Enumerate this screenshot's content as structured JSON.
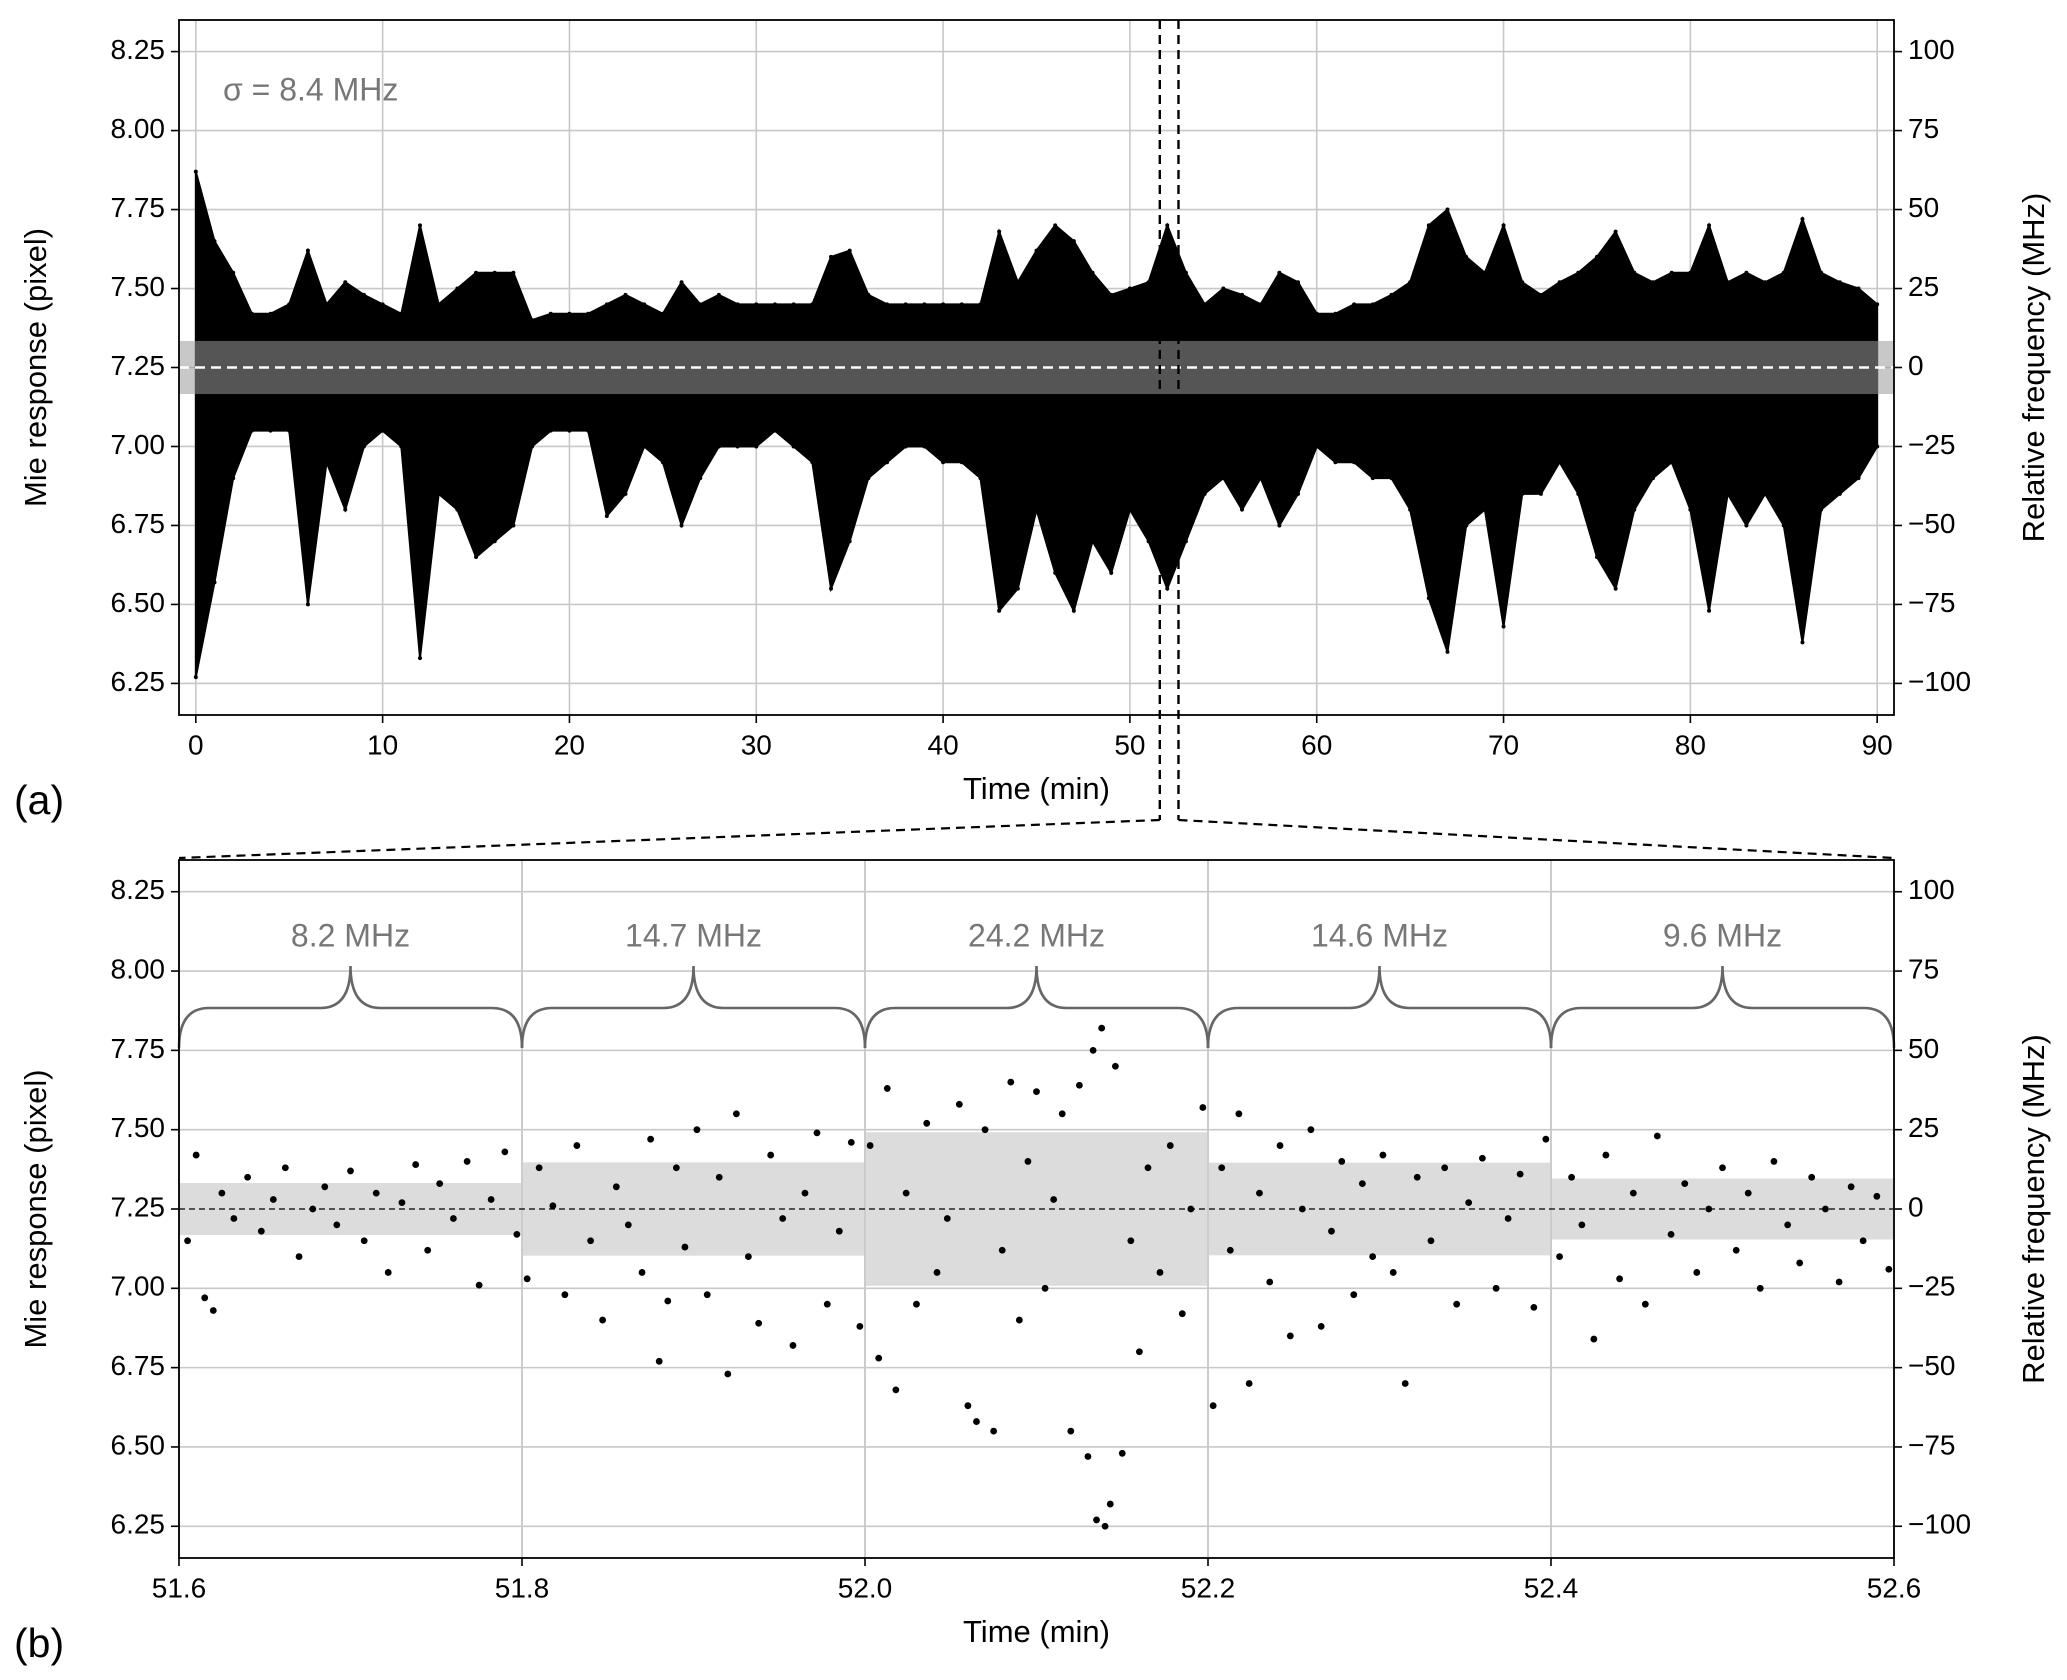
{
  "chart_data": [
    {
      "type": "scatter",
      "panel_label": "(a)",
      "x_label": "Time (min)",
      "y_label": "Mie response (pixel)",
      "y2_label": "Relative frequency (MHz)",
      "annotation": {
        "value": 8.4,
        "label": "σ = 8.4 MHz"
      },
      "reference_line": 7.25,
      "fill_to_reference": true,
      "grid": true,
      "xlim": [
        -0.9,
        90.9
      ],
      "xticks": [
        0,
        10,
        20,
        30,
        40,
        50,
        60,
        70,
        80,
        90
      ],
      "ylim": [
        6.15,
        8.35
      ],
      "yticks": [
        6.25,
        {
          "value": 6.5,
          "label": "6.50"
        },
        6.75,
        {
          "value": 7,
          "label": "7.00"
        },
        7.25,
        {
          "value": 7.5,
          "label": "7.50"
        },
        7.75,
        {
          "value": 8,
          "label": "8.00"
        },
        8.25
      ],
      "y2lim": [
        -110,
        110
      ],
      "y2ticks": [
        {
          "value": -100,
          "label": "−100"
        },
        {
          "value": -75,
          "label": "−75"
        },
        {
          "value": -50,
          "label": "−50"
        },
        {
          "value": -25,
          "label": "−25"
        },
        0,
        25,
        50,
        75,
        100
      ],
      "x": [
        0,
        1,
        2,
        3,
        4,
        5,
        6,
        7,
        8,
        9,
        10,
        11,
        12,
        13,
        14,
        15,
        16,
        17,
        18,
        19,
        20,
        21,
        22,
        23,
        24,
        25,
        26,
        27,
        28,
        29,
        30,
        31,
        32,
        33,
        34,
        35,
        36,
        37,
        38,
        39,
        40,
        41,
        42,
        43,
        44,
        45,
        46,
        47,
        48,
        49,
        50,
        51,
        52,
        53,
        54,
        55,
        56,
        57,
        58,
        59,
        60,
        61,
        62,
        63,
        64,
        65,
        66,
        67,
        68,
        69,
        70,
        71,
        72,
        73,
        74,
        75,
        76,
        77,
        78,
        79,
        80,
        81,
        82,
        83,
        84,
        85,
        86,
        87,
        88,
        89,
        90
      ],
      "series": [
        {
          "color": "#000000",
          "values": [
            7.87,
            7.65,
            7.55,
            7.42,
            7.42,
            7.45,
            7.62,
            7.45,
            7.52,
            7.48,
            7.45,
            7.42,
            7.7,
            7.45,
            7.5,
            7.55,
            7.55,
            7.55,
            7.4,
            7.42,
            7.42,
            7.42,
            7.45,
            7.48,
            7.45,
            7.42,
            7.52,
            7.45,
            7.48,
            7.45,
            7.45,
            7.45,
            7.45,
            7.45,
            7.6,
            7.62,
            7.48,
            7.45,
            7.45,
            7.45,
            7.45,
            7.45,
            7.45,
            7.68,
            7.52,
            7.62,
            7.7,
            7.65,
            7.55,
            7.48,
            7.5,
            7.52,
            7.7,
            7.55,
            7.45,
            7.5,
            7.48,
            7.45,
            7.55,
            7.52,
            7.42,
            7.42,
            7.45,
            7.45,
            7.48,
            7.52,
            7.7,
            7.75,
            7.6,
            7.55,
            7.7,
            7.52,
            7.48,
            7.52,
            7.55,
            7.6,
            7.68,
            7.55,
            7.52,
            7.55,
            7.55,
            7.7,
            7.52,
            7.55,
            7.52,
            7.55,
            7.72,
            7.55,
            7.52,
            7.5,
            7.45
          ]
        },
        {
          "color": "#000000",
          "values": [
            6.27,
            6.57,
            6.9,
            7.05,
            7.05,
            7.05,
            6.5,
            6.95,
            6.8,
            7.0,
            7.05,
            7.0,
            6.33,
            6.85,
            6.8,
            6.65,
            6.7,
            6.75,
            7.0,
            7.05,
            7.05,
            7.05,
            6.78,
            6.85,
            7.0,
            6.95,
            6.75,
            6.9,
            7.0,
            7.0,
            7.0,
            7.05,
            7.0,
            6.95,
            6.55,
            6.7,
            6.9,
            6.95,
            7.0,
            7.0,
            6.95,
            6.95,
            6.9,
            6.48,
            6.55,
            6.8,
            6.6,
            6.48,
            6.7,
            6.6,
            6.8,
            6.7,
            6.55,
            6.7,
            6.85,
            6.9,
            6.8,
            6.9,
            6.75,
            6.85,
            7.0,
            6.95,
            6.95,
            6.9,
            6.9,
            6.8,
            6.52,
            6.35,
            6.75,
            6.8,
            6.43,
            6.85,
            6.85,
            6.95,
            6.85,
            6.65,
            6.55,
            6.8,
            6.9,
            6.95,
            6.8,
            6.48,
            6.85,
            6.75,
            6.85,
            6.75,
            6.38,
            6.8,
            6.85,
            6.9,
            7.0
          ]
        }
      ]
    },
    {
      "type": "scatter",
      "panel_label": "(b)",
      "x_label": "Time (min)",
      "y_label": "Mie response (pixel)",
      "y2_label": "Relative frequency (MHz)",
      "reference_line": 7.25,
      "grid": true,
      "xlim": [
        51.6,
        52.6
      ],
      "xticks": [
        51.6,
        51.8,
        {
          "value": 52,
          "label": "52.0"
        },
        52.2,
        52.4,
        52.6
      ],
      "ylim": [
        6.15,
        8.35
      ],
      "yticks": [
        6.25,
        {
          "value": 6.5,
          "label": "6.50"
        },
        6.75,
        {
          "value": 7,
          "label": "7.00"
        },
        7.25,
        {
          "value": 7.5,
          "label": "7.50"
        },
        7.75,
        {
          "value": 8,
          "label": "8.00"
        },
        8.25
      ],
      "y2lim": [
        -110,
        110
      ],
      "y2ticks": [
        {
          "value": -100,
          "label": "−100"
        },
        {
          "value": -75,
          "label": "−75"
        },
        {
          "value": -50,
          "label": "−50"
        },
        {
          "value": -25,
          "label": "−25"
        },
        0,
        25,
        50,
        75,
        100
      ],
      "segments": [
        {
          "start": 51.6,
          "end": 51.8,
          "sigma": 8.2,
          "label": "8.2 MHz"
        },
        {
          "start": 51.8,
          "end": 52.0,
          "sigma": 14.7,
          "label": "14.7 MHz"
        },
        {
          "start": 52.0,
          "end": 52.2,
          "sigma": 24.2,
          "label": "24.2 MHz"
        },
        {
          "start": 52.2,
          "end": 52.4,
          "sigma": 14.6,
          "label": "14.6 MHz"
        },
        {
          "start": 52.4,
          "end": 52.6,
          "sigma": 9.6,
          "label": "9.6 MHz"
        }
      ],
      "x": [
        51.605,
        51.61,
        51.615,
        51.62,
        51.625,
        51.632,
        51.64,
        51.648,
        51.655,
        51.662,
        51.67,
        51.678,
        51.685,
        51.692,
        51.7,
        51.708,
        51.715,
        51.722,
        51.73,
        51.738,
        51.745,
        51.752,
        51.76,
        51.768,
        51.775,
        51.782,
        51.79,
        51.797,
        51.803,
        51.81,
        51.818,
        51.825,
        51.832,
        51.84,
        51.847,
        51.855,
        51.862,
        51.87,
        51.875,
        51.88,
        51.885,
        51.89,
        51.895,
        51.902,
        51.908,
        51.915,
        51.92,
        51.925,
        51.932,
        51.938,
        51.945,
        51.952,
        51.958,
        51.965,
        51.972,
        51.978,
        51.985,
        51.992,
        51.997,
        52.003,
        52.008,
        52.013,
        52.018,
        52.024,
        52.03,
        52.036,
        52.042,
        52.048,
        52.055,
        52.06,
        52.065,
        52.07,
        52.075,
        52.08,
        52.085,
        52.09,
        52.095,
        52.1,
        52.105,
        52.11,
        52.115,
        52.12,
        52.125,
        52.13,
        52.133,
        52.135,
        52.138,
        52.14,
        52.143,
        52.146,
        52.15,
        52.155,
        52.16,
        52.165,
        52.172,
        52.178,
        52.185,
        52.19,
        52.197,
        52.203,
        52.208,
        52.213,
        52.218,
        52.224,
        52.23,
        52.236,
        52.242,
        52.248,
        52.255,
        52.26,
        52.266,
        52.272,
        52.278,
        52.285,
        52.29,
        52.296,
        52.302,
        52.308,
        52.315,
        52.322,
        52.33,
        52.338,
        52.345,
        52.352,
        52.36,
        52.368,
        52.375,
        52.382,
        52.39,
        52.397,
        52.405,
        52.412,
        52.418,
        52.425,
        52.432,
        52.44,
        52.448,
        52.455,
        52.462,
        52.47,
        52.478,
        52.485,
        52.492,
        52.5,
        52.508,
        52.515,
        52.522,
        52.53,
        52.538,
        52.545,
        52.552,
        52.56,
        52.568,
        52.575,
        52.582,
        52.59,
        52.597
      ],
      "series": [
        {
          "color": "#000000",
          "values": [
            7.15,
            7.42,
            6.97,
            6.93,
            7.3,
            7.22,
            7.35,
            7.18,
            7.28,
            7.38,
            7.1,
            7.25,
            7.32,
            7.2,
            7.37,
            7.15,
            7.3,
            7.05,
            7.27,
            7.39,
            7.12,
            7.33,
            7.22,
            7.4,
            7.01,
            7.28,
            7.43,
            7.17,
            7.03,
            7.38,
            7.26,
            6.98,
            7.45,
            7.15,
            6.9,
            7.32,
            7.2,
            7.05,
            7.47,
            6.77,
            6.96,
            7.38,
            7.13,
            7.5,
            6.98,
            7.35,
            6.73,
            7.55,
            7.1,
            6.89,
            7.42,
            7.22,
            6.82,
            7.3,
            7.49,
            6.95,
            7.18,
            7.46,
            6.88,
            7.45,
            6.78,
            7.63,
            6.68,
            7.3,
            6.95,
            7.52,
            7.05,
            7.22,
            7.58,
            6.63,
            6.58,
            7.5,
            6.55,
            7.12,
            7.65,
            6.9,
            7.4,
            7.62,
            7.0,
            7.28,
            7.55,
            6.55,
            7.64,
            6.47,
            7.75,
            6.27,
            7.82,
            6.25,
            6.32,
            7.7,
            6.48,
            7.15,
            6.8,
            7.38,
            7.05,
            7.45,
            6.92,
            7.25,
            7.57,
            6.63,
            7.38,
            7.12,
            7.55,
            6.7,
            7.3,
            7.02,
            7.45,
            6.85,
            7.25,
            7.5,
            6.88,
            7.18,
            7.4,
            6.98,
            7.33,
            7.1,
            7.42,
            7.05,
            6.7,
            7.35,
            7.15,
            7.38,
            6.95,
            7.27,
            7.41,
            7.0,
            7.22,
            7.36,
            6.94,
            7.47,
            7.1,
            7.35,
            7.2,
            6.84,
            7.42,
            7.03,
            7.3,
            6.95,
            7.48,
            7.17,
            7.33,
            7.05,
            7.25,
            7.38,
            7.12,
            7.3,
            7.0,
            7.4,
            7.2,
            7.08,
            7.35,
            7.25,
            7.02,
            7.32,
            7.15,
            7.29,
            7.06
          ]
        }
      ]
    }
  ]
}
